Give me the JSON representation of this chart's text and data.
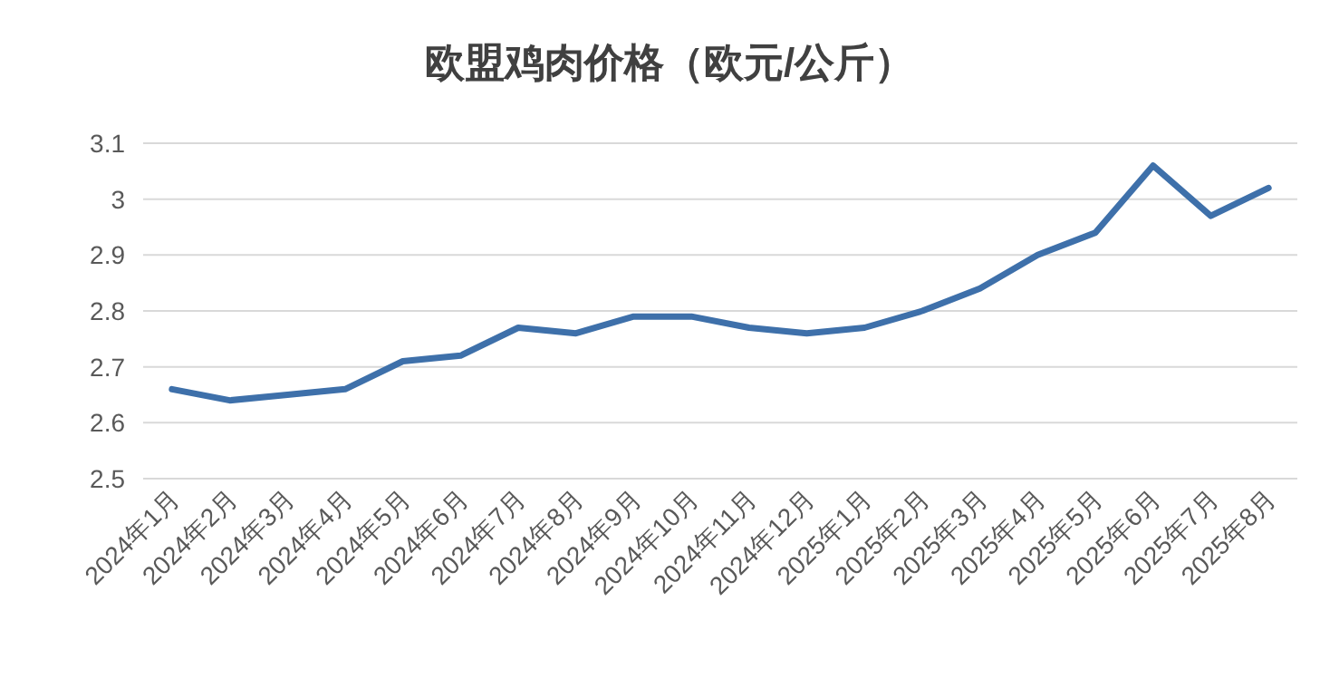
{
  "chart_data": {
    "type": "line",
    "title": "欧盟鸡肉价格（欧元/公斤）",
    "categories": [
      "2024年1月",
      "2024年2月",
      "2024年3月",
      "2024年4月",
      "2024年5月",
      "2024年6月",
      "2024年7月",
      "2024年8月",
      "2024年9月",
      "2024年10月",
      "2024年11月",
      "2024年12月",
      "2025年1月",
      "2025年2月",
      "2025年3月",
      "2025年4月",
      "2025年5月",
      "2025年6月",
      "2025年7月",
      "2025年8月"
    ],
    "series": [
      {
        "color": "#3e70aa",
        "values": [
          2.66,
          2.64,
          2.65,
          2.66,
          2.71,
          2.72,
          2.77,
          2.76,
          2.79,
          2.79,
          2.77,
          2.76,
          2.77,
          2.8,
          2.84,
          2.9,
          2.94,
          3.06,
          2.97,
          3.02
        ]
      }
    ],
    "ylim": [
      2.5,
      3.1
    ],
    "yticks": [
      2.5,
      2.6,
      2.7,
      2.8,
      2.9,
      3,
      3.1
    ],
    "grid": "y",
    "marker": "none",
    "line_style": "solid"
  }
}
